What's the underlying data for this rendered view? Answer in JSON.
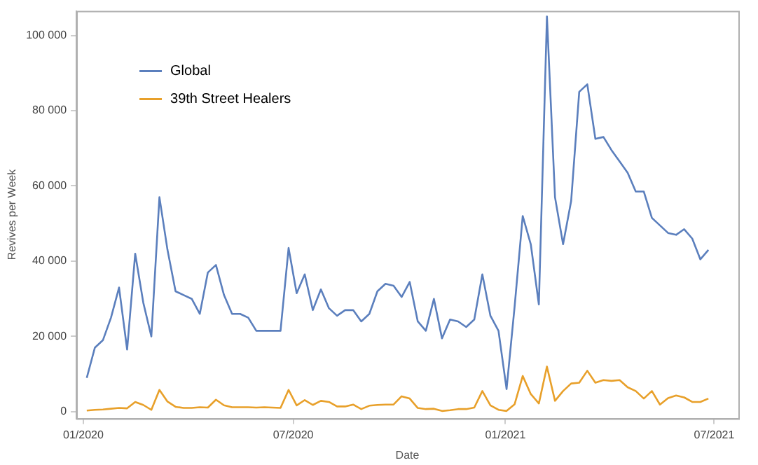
{
  "chart_data": {
    "type": "line",
    "xlabel": "Date",
    "ylabel": "Revives per Week",
    "x": [
      "2020-01-04",
      "2020-01-11",
      "2020-01-18",
      "2020-01-25",
      "2020-02-01",
      "2020-02-08",
      "2020-02-15",
      "2020-02-22",
      "2020-02-29",
      "2020-03-07",
      "2020-03-14",
      "2020-03-21",
      "2020-03-28",
      "2020-04-04",
      "2020-04-11",
      "2020-04-18",
      "2020-04-25",
      "2020-05-02",
      "2020-05-09",
      "2020-05-16",
      "2020-05-23",
      "2020-05-30",
      "2020-06-06",
      "2020-06-13",
      "2020-06-20",
      "2020-06-27",
      "2020-07-04",
      "2020-07-11",
      "2020-07-18",
      "2020-07-25",
      "2020-08-01",
      "2020-08-08",
      "2020-08-15",
      "2020-08-22",
      "2020-08-29",
      "2020-09-05",
      "2020-09-12",
      "2020-09-19",
      "2020-09-26",
      "2020-10-03",
      "2020-10-10",
      "2020-10-17",
      "2020-10-24",
      "2020-10-31",
      "2020-11-07",
      "2020-11-14",
      "2020-11-21",
      "2020-11-28",
      "2020-12-05",
      "2020-12-12",
      "2020-12-19",
      "2020-12-26",
      "2021-01-02",
      "2021-01-09",
      "2021-01-16",
      "2021-01-23",
      "2021-01-30",
      "2021-02-06",
      "2021-02-13",
      "2021-02-20",
      "2021-02-27",
      "2021-03-06",
      "2021-03-13",
      "2021-03-20",
      "2021-03-27",
      "2021-04-03",
      "2021-04-10",
      "2021-04-17",
      "2021-04-24",
      "2021-05-01",
      "2021-05-08",
      "2021-05-15",
      "2021-05-22",
      "2021-05-29",
      "2021-06-05",
      "2021-06-12",
      "2021-06-19",
      "2021-06-26"
    ],
    "series": [
      {
        "name": "Global",
        "color": "#5b7fbd",
        "values": [
          9000,
          17000,
          19000,
          25000,
          33000,
          16500,
          42000,
          29000,
          20000,
          57000,
          43000,
          32000,
          31000,
          30000,
          26000,
          37000,
          39000,
          31000,
          26000,
          26000,
          25000,
          21500,
          21500,
          21500,
          21500,
          43500,
          31500,
          36500,
          27000,
          32500,
          27500,
          25500,
          27000,
          27000,
          24000,
          26000,
          32000,
          34000,
          33500,
          30500,
          34500,
          24000,
          21500,
          30000,
          19500,
          24500,
          24000,
          22500,
          24500,
          36500,
          25500,
          21500,
          6000,
          28000,
          52000,
          44500,
          28500,
          105000,
          57000,
          44500,
          56000,
          85000,
          87000,
          72500,
          73000,
          69500,
          66500,
          63500,
          58500,
          58500,
          51500,
          49500,
          47500,
          47000,
          48500,
          46000,
          40500,
          43000
        ]
      },
      {
        "name": "39th Street Healers",
        "color": "#e8a02a",
        "values": [
          300,
          500,
          600,
          800,
          1000,
          900,
          2600,
          1800,
          500,
          5800,
          2700,
          1300,
          1000,
          1000,
          1200,
          1100,
          3200,
          1700,
          1200,
          1200,
          1200,
          1100,
          1200,
          1100,
          1000,
          5800,
          1700,
          3100,
          1800,
          2900,
          2600,
          1400,
          1400,
          1900,
          700,
          1600,
          1800,
          1900,
          1900,
          4100,
          3500,
          1000,
          700,
          800,
          200,
          400,
          700,
          700,
          1100,
          5500,
          1700,
          500,
          200,
          2000,
          9500,
          4700,
          2200,
          12000,
          2900,
          5500,
          7500,
          7700,
          10900,
          7700,
          8400,
          8200,
          8400,
          6500,
          5500,
          3500,
          5500,
          1900,
          3600,
          4300,
          3800,
          2600,
          2600,
          3500
        ]
      }
    ],
    "xlim": [
      "2019-12-26",
      "2021-07-22"
    ],
    "xticks": [
      {
        "value": "2020-01-01",
        "label": "01/2020"
      },
      {
        "value": "2020-07-01",
        "label": "07/2020"
      },
      {
        "value": "2021-01-01",
        "label": "01/2021"
      },
      {
        "value": "2021-07-01",
        "label": "07/2021"
      }
    ],
    "ylim": [
      -1800,
      106500
    ],
    "yticks": [
      0,
      {
        "value": 20000,
        "label": "20 000"
      },
      {
        "value": 40000,
        "label": "40 000"
      },
      {
        "value": 60000,
        "label": "60 000"
      },
      {
        "value": 80000,
        "label": "80 000"
      },
      {
        "value": 100000,
        "label": "100 000"
      }
    ],
    "legend": "top left",
    "marker": "none",
    "line_style": "solid",
    "grid": false
  }
}
